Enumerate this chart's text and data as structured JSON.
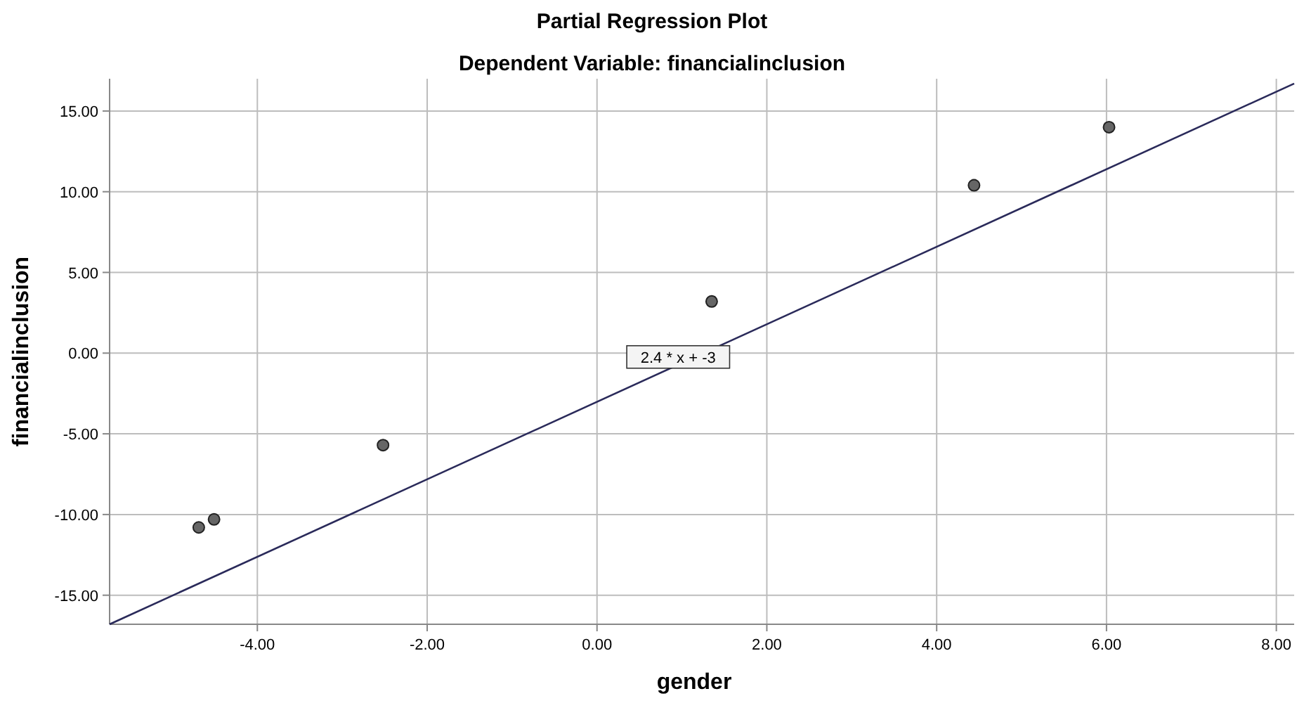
{
  "chart_data": {
    "type": "scatter",
    "title": "Partial Regression Plot",
    "subtitle": "Dependent Variable: financialinclusion",
    "xlabel": "gender",
    "ylabel": "financialinclusion",
    "xlim": [
      -5.74,
      8.21
    ],
    "ylim": [
      -16.8,
      17
    ],
    "xticks": [
      {
        "value": -4,
        "label": "-4.00"
      },
      {
        "value": -2,
        "label": "-2.00"
      },
      {
        "value": 0,
        "label": "0.00"
      },
      {
        "value": 2,
        "label": "2.00"
      },
      {
        "value": 4,
        "label": "4.00"
      },
      {
        "value": 6,
        "label": "6.00"
      },
      {
        "value": 8,
        "label": "8.00"
      }
    ],
    "yticks": [
      {
        "value": -15,
        "label": "-15.00"
      },
      {
        "value": -10,
        "label": "-10.00"
      },
      {
        "value": -5,
        "label": "-5.00"
      },
      {
        "value": 0,
        "label": "0.00"
      },
      {
        "value": 5,
        "label": "5.00"
      },
      {
        "value": 10,
        "label": "10.00"
      },
      {
        "value": 15,
        "label": "15.00"
      }
    ],
    "grid": true,
    "marker": "circle",
    "series": [
      {
        "color": "#666666",
        "x": [
          -4.69,
          -4.51,
          -2.52,
          1.35,
          4.44,
          6.03
        ],
        "values": [
          -10.8,
          -10.3,
          -5.7,
          3.2,
          10.4,
          14.0
        ]
      },
      {
        "type": "line",
        "marker": "none",
        "color": "#2a2a5a",
        "x": [
          -5.74,
          8.21
        ],
        "values": [
          -16.8,
          16.7
        ]
      }
    ],
    "annotations": [
      "2.4 * x + -3"
    ]
  }
}
